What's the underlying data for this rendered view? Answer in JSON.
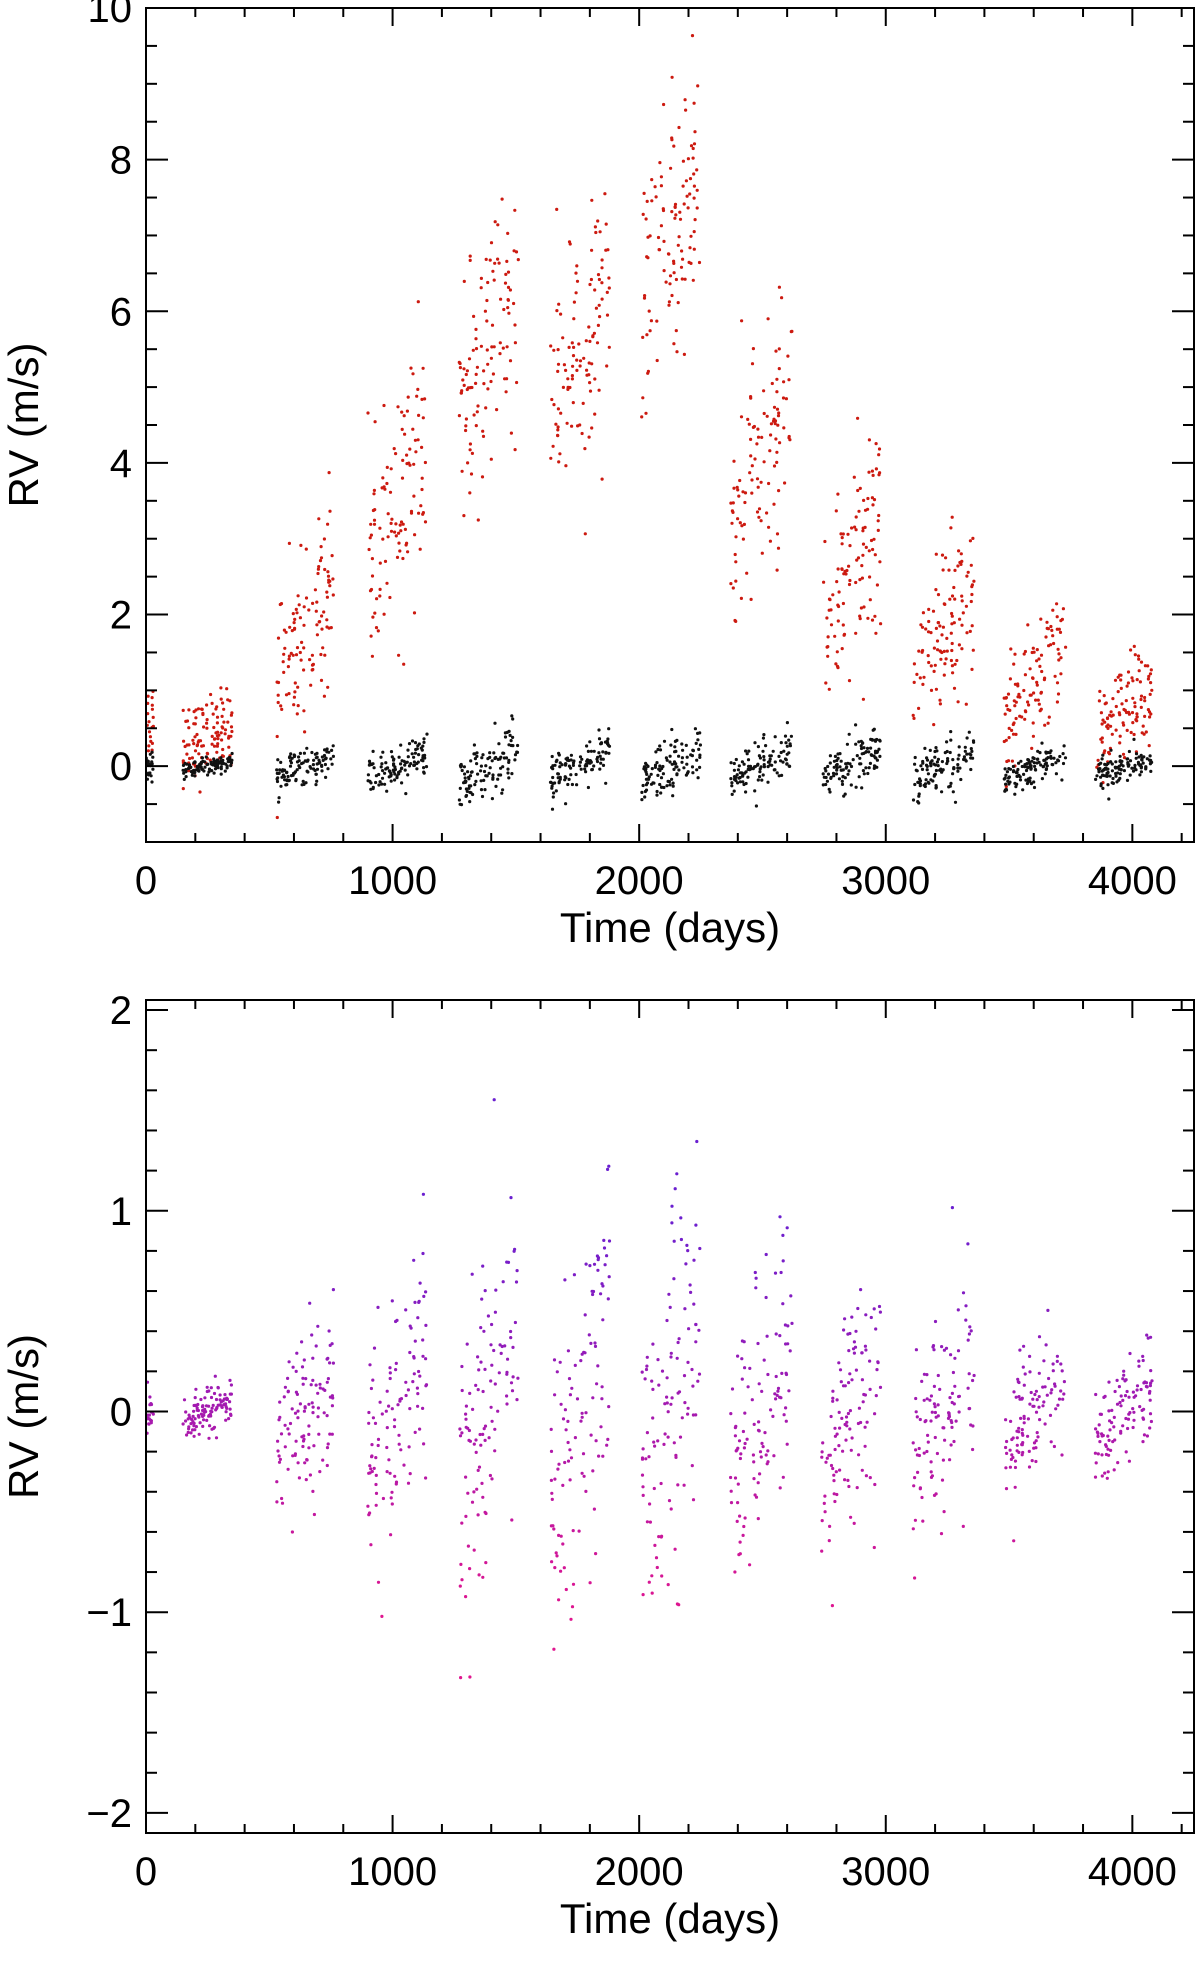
{
  "figure": {
    "background": "#ffffff",
    "axis_color": "#000000"
  },
  "chart_data": [
    {
      "type": "scatter",
      "title": "",
      "xlabel": "Time (days)",
      "ylabel": "RV (m/s)",
      "xlim": [
        0,
        4250
      ],
      "ylim": [
        -1,
        10
      ],
      "x_ticks": [
        0,
        1000,
        2000,
        3000,
        4000
      ],
      "x_tick_labels": [
        "0",
        "1000",
        "2000",
        "3000",
        "4000"
      ],
      "y_ticks": [
        0,
        2,
        4,
        6,
        8,
        10
      ],
      "y_tick_labels": [
        "0",
        "2",
        "4",
        "6",
        "8",
        "10"
      ],
      "grid": false,
      "legend": null,
      "observing_seasons": [
        {
          "start": 0,
          "end": 30
        },
        {
          "start": 150,
          "end": 350
        },
        {
          "start": 530,
          "end": 760
        },
        {
          "start": 900,
          "end": 1140
        },
        {
          "start": 1270,
          "end": 1510
        },
        {
          "start": 1640,
          "end": 1880
        },
        {
          "start": 2010,
          "end": 2250
        },
        {
          "start": 2370,
          "end": 2620
        },
        {
          "start": 2740,
          "end": 2980
        },
        {
          "start": 3110,
          "end": 3360
        },
        {
          "start": 3480,
          "end": 3730
        },
        {
          "start": 3850,
          "end": 4080
        }
      ],
      "series": [
        {
          "color": "#cc1a10",
          "description": "raw signal: long-term bump peaking near day 2050 with season-level scatter",
          "season_centers": [
            [
              15,
              0.6
            ],
            [
              250,
              0.4
            ],
            [
              645,
              1.8
            ],
            [
              1020,
              3.4
            ],
            [
              1390,
              5.4
            ],
            [
              1760,
              5.4
            ],
            [
              2130,
              7.0
            ],
            [
              2495,
              4.0
            ],
            [
              2860,
              2.6
            ],
            [
              3235,
              1.8
            ],
            [
              3605,
              1.0
            ],
            [
              3965,
              0.7
            ]
          ],
          "season_spread": [
            0.5,
            0.5,
            1.0,
            1.4,
            1.4,
            1.6,
            1.5,
            1.4,
            1.3,
            1.0,
            0.8,
            0.6
          ]
        },
        {
          "color": "#111111",
          "description": "residuals centered at 0",
          "season_centers": [
            [
              15,
              0.0
            ],
            [
              250,
              0.0
            ],
            [
              645,
              0.0
            ],
            [
              1020,
              0.0
            ],
            [
              1390,
              0.0
            ],
            [
              1760,
              0.0
            ],
            [
              2130,
              0.0
            ],
            [
              2495,
              0.0
            ],
            [
              2860,
              0.0
            ],
            [
              3235,
              0.0
            ],
            [
              3605,
              0.0
            ],
            [
              3965,
              0.0
            ]
          ],
          "season_spread": [
            0.15,
            0.1,
            0.2,
            0.25,
            0.35,
            0.3,
            0.35,
            0.3,
            0.3,
            0.3,
            0.2,
            0.2
          ]
        }
      ]
    },
    {
      "type": "scatter",
      "title": "",
      "xlabel": "Time (days)",
      "ylabel": "RV (m/s)",
      "xlim": [
        0,
        4250
      ],
      "ylim": [
        -2.1,
        2.05
      ],
      "x_ticks": [
        0,
        1000,
        2000,
        3000,
        4000
      ],
      "x_tick_labels": [
        "0",
        "1000",
        "2000",
        "3000",
        "4000"
      ],
      "y_ticks": [
        -2,
        -1,
        0,
        1,
        2
      ],
      "y_tick_labels": [
        "−2",
        "−1",
        "0",
        "1",
        "2"
      ],
      "grid": false,
      "legend": null,
      "color_scale": {
        "low": "#e0158f",
        "high": "#6a1fd0",
        "range": [
          -1,
          1
        ]
      },
      "series": [
        {
          "description": "residual points colored by value (magenta low, violet high)",
          "season_centers": [
            [
              15,
              0.0
            ],
            [
              250,
              0.0
            ],
            [
              645,
              0.0
            ],
            [
              1020,
              0.0
            ],
            [
              1390,
              0.0
            ],
            [
              1760,
              0.0
            ],
            [
              2130,
              0.0
            ],
            [
              2495,
              0.0
            ],
            [
              2860,
              0.0
            ],
            [
              3235,
              0.0
            ],
            [
              3605,
              0.0
            ],
            [
              3965,
              0.0
            ]
          ],
          "season_spread": [
            0.1,
            0.12,
            0.35,
            0.55,
            0.75,
            0.8,
            0.8,
            0.6,
            0.55,
            0.45,
            0.3,
            0.25
          ]
        }
      ]
    }
  ]
}
